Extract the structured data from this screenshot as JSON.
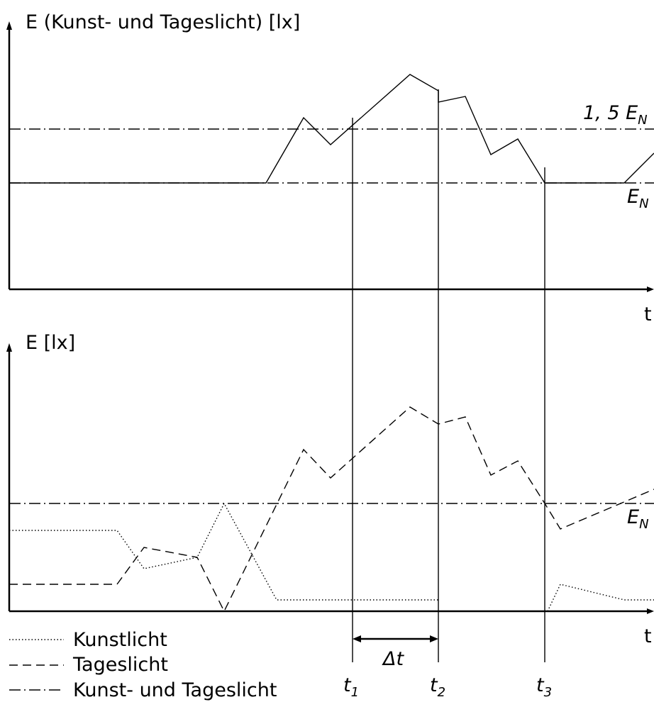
{
  "top_chart": {
    "y_axis_label": "E (Kunst- und Tageslicht) [lx]",
    "x_axis_label": "t",
    "ref_upper": {
      "prefix": "1, 5 ",
      "base": "E",
      "sub": "N"
    },
    "ref_lower": {
      "base": "E",
      "sub": "N"
    }
  },
  "bottom_chart": {
    "y_axis_label": "E [lx]",
    "x_axis_label": "t",
    "ref_line": {
      "base": "E",
      "sub": "N"
    }
  },
  "legend": {
    "items": [
      {
        "label": "Kunstlicht",
        "style": "dotted"
      },
      {
        "label": "Tageslicht",
        "style": "dashed"
      },
      {
        "label": "Kunst- und Tageslicht",
        "style": "dash-dot"
      }
    ]
  },
  "time_marks": {
    "t1": {
      "base": "t",
      "sub": "1"
    },
    "t2": {
      "base": "t",
      "sub": "2"
    },
    "t3": {
      "base": "t",
      "sub": "3"
    },
    "delta": "Δt"
  },
  "colors": {
    "line": "#000000",
    "background": "#ffffff"
  }
}
